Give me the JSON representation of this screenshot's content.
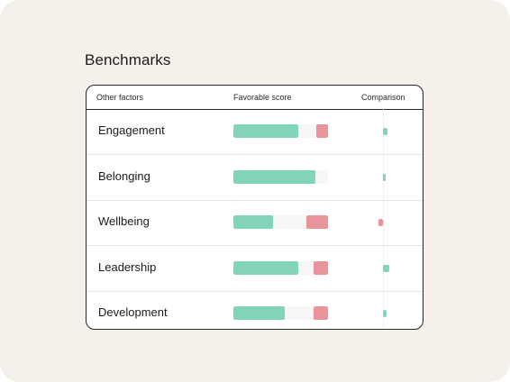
{
  "page": {
    "title": "Benchmarks"
  },
  "table": {
    "headers": {
      "factor": "Other factors",
      "score": "Favorable score",
      "comparison": "Comparison"
    },
    "rows": [
      {
        "label": "Engagement",
        "favorable": 0.69,
        "unfavorable": 0.12,
        "comparison": 0.08
      },
      {
        "label": "Belonging",
        "favorable": 0.87,
        "unfavorable": 0.0,
        "comparison": 0.04
      },
      {
        "label": "Wellbeing",
        "favorable": 0.42,
        "unfavorable": 0.23,
        "comparison": -0.08
      },
      {
        "label": "Leadership",
        "favorable": 0.69,
        "unfavorable": 0.15,
        "comparison": 0.12
      },
      {
        "label": "Development",
        "favorable": 0.54,
        "unfavorable": 0.15,
        "comparison": 0.06
      }
    ]
  },
  "colors": {
    "favorable": "#82d4bb",
    "unfavorable": "#e8949a",
    "comparison_positive": "#82d4bb",
    "comparison_negative": "#e8949a"
  }
}
